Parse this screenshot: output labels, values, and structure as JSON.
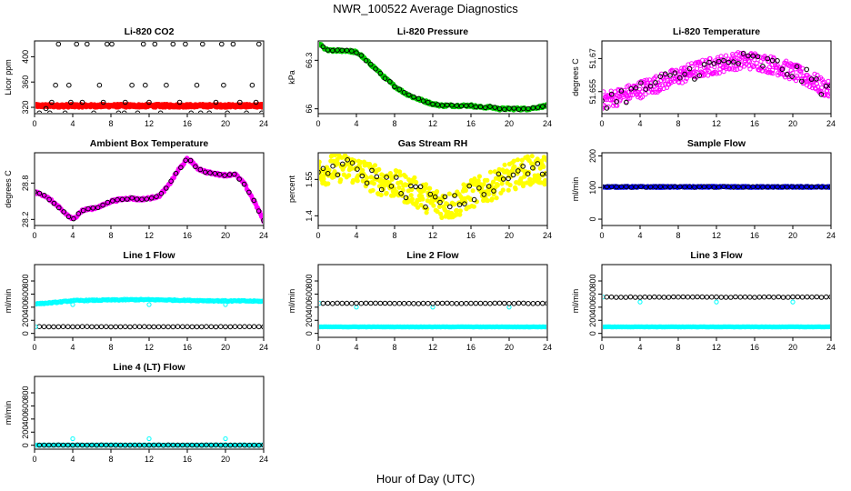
{
  "figure": {
    "title": "NWR_100522  Average Diagnostics",
    "xlabel": "Hour of Day (UTC)"
  },
  "colors": {
    "red": "#ff0000",
    "green": "#00cc00",
    "magenta": "#ff00ff",
    "yellow": "#ffff00",
    "blue": "#0000ff",
    "cyan": "#00ffff",
    "black": "#000000"
  },
  "chart_data": [
    {
      "type": "scatter",
      "title": "Li-820 CO2",
      "ylabel": "Licor ppm",
      "xlim": [
        0,
        24
      ],
      "xticks": [
        0,
        4,
        8,
        12,
        16,
        20,
        24
      ],
      "ylim": [
        310,
        425
      ],
      "yticks": [
        320,
        360,
        400
      ],
      "series": [
        {
          "color": "red",
          "filled": true,
          "kind": "band",
          "x": [
            0.1,
            24
          ],
          "y": [
            320,
            325
          ],
          "count": 600
        },
        {
          "color": "black",
          "filled": false,
          "kind": "points",
          "x": [
            0.5,
            1.2,
            1.8,
            2.2,
            2.5,
            3.2,
            3.8,
            4.4,
            5.0,
            5.5,
            6.2,
            6.8,
            7.2,
            7.6,
            8.1,
            8.8,
            9.5,
            10.2,
            10.8,
            11.4,
            12.0,
            12.6,
            13.2,
            13.8,
            14.5,
            15.2,
            15.8,
            16.4,
            17.0,
            17.6,
            18.3,
            19.0,
            19.6,
            20.2,
            20.8,
            21.5,
            22.2,
            22.8,
            23.5,
            23.8,
            3.6,
            11.6,
            19.8,
            1.6,
            9.4,
            17.4,
            23.2
          ],
          "y": [
            311,
            318,
            328,
            355,
            420,
            311,
            328,
            420,
            328,
            420,
            311,
            355,
            328,
            420,
            420,
            311,
            328,
            355,
            311,
            420,
            328,
            420,
            311,
            355,
            420,
            328,
            420,
            311,
            355,
            420,
            311,
            328,
            420,
            311,
            420,
            328,
            311,
            355,
            420,
            311,
            355,
            355,
            355,
            311,
            311,
            311,
            328
          ]
        }
      ]
    },
    {
      "type": "scatter",
      "title": "Li-820 Pressure",
      "ylabel": "kPa",
      "xlim": [
        0,
        24
      ],
      "xticks": [
        0,
        4,
        8,
        12,
        16,
        20,
        24
      ],
      "ylim": [
        65.97,
        66.42
      ],
      "yticks": [
        66.0,
        66.3
      ],
      "series": [
        {
          "color": "green",
          "filled": true,
          "kind": "curve",
          "x": [
            0,
            0.5,
            1,
            2,
            3,
            4,
            4.5,
            5,
            6,
            7,
            8,
            9,
            10,
            11,
            12,
            13,
            14,
            15,
            16,
            17,
            18,
            19,
            20,
            21,
            22,
            23,
            24
          ],
          "y": [
            66.41,
            66.38,
            66.36,
            66.36,
            66.36,
            66.35,
            66.33,
            66.3,
            66.25,
            66.19,
            66.14,
            66.1,
            66.07,
            66.05,
            66.03,
            66.02,
            66.02,
            66.02,
            66.02,
            66.01,
            66.01,
            66.0,
            66.0,
            66.0,
            66.0,
            66.01,
            66.02
          ],
          "jitter": 0.008,
          "count": 300
        },
        {
          "color": "black",
          "filled": false,
          "kind": "curve",
          "x": [
            0.5,
            1,
            2,
            3,
            4,
            4.5,
            5,
            6,
            7,
            8,
            9,
            10,
            11,
            12,
            13,
            14,
            15,
            16,
            17,
            18,
            19,
            20,
            21,
            22,
            23,
            24
          ],
          "y": [
            66.38,
            66.36,
            66.36,
            66.36,
            66.35,
            66.33,
            66.3,
            66.25,
            66.19,
            66.14,
            66.1,
            66.07,
            66.05,
            66.03,
            66.02,
            66.02,
            66.02,
            66.02,
            66.01,
            66.01,
            66.0,
            66.0,
            66.0,
            66.0,
            66.01,
            66.02
          ],
          "jitter": 0.004,
          "count": 48
        }
      ]
    },
    {
      "type": "scatter",
      "title": "Li-820 Temperature",
      "ylabel": "degrees C",
      "xlim": [
        0,
        24
      ],
      "xticks": [
        0,
        4,
        8,
        12,
        16,
        20,
        24
      ],
      "ylim": [
        51.645,
        51.678
      ],
      "yticks": [
        51.655,
        51.67
      ],
      "series": [
        {
          "color": "magenta",
          "filled": false,
          "kind": "curve",
          "x": [
            0,
            2,
            4,
            6,
            8,
            10,
            12,
            14,
            16,
            18,
            20,
            22,
            24
          ],
          "y": [
            51.651,
            51.653,
            51.656,
            51.659,
            51.662,
            51.665,
            51.667,
            51.669,
            51.669,
            51.667,
            51.664,
            51.66,
            51.655
          ],
          "jitter": 0.004,
          "count": 420
        },
        {
          "color": "black",
          "filled": false,
          "kind": "curve",
          "x": [
            0,
            2,
            4,
            6,
            8,
            10,
            12,
            14,
            16,
            18,
            20,
            22,
            24
          ],
          "y": [
            51.651,
            51.653,
            51.656,
            51.659,
            51.662,
            51.665,
            51.667,
            51.669,
            51.669,
            51.667,
            51.664,
            51.66,
            51.655
          ],
          "jitter": 0.004,
          "count": 48
        }
      ]
    },
    {
      "type": "scatter",
      "title": "Ambient Box Temperature",
      "ylabel": "degrees C",
      "xlim": [
        0,
        24
      ],
      "xticks": [
        0,
        4,
        8,
        12,
        16,
        20,
        24
      ],
      "ylim": [
        28.1,
        29.3
      ],
      "yticks": [
        28.2,
        28.8
      ],
      "series": [
        {
          "color": "magenta",
          "filled": true,
          "kind": "curve",
          "x": [
            0,
            1,
            2,
            3,
            4,
            5,
            6,
            7,
            8,
            9,
            10,
            11,
            12,
            13,
            14,
            15,
            16,
            16.5,
            17,
            18,
            19,
            20,
            21,
            22,
            23,
            24
          ],
          "y": [
            28.65,
            28.6,
            28.48,
            28.33,
            28.2,
            28.35,
            28.38,
            28.42,
            28.5,
            28.53,
            28.55,
            28.53,
            28.55,
            28.58,
            28.75,
            29.0,
            29.2,
            29.15,
            29.05,
            28.98,
            28.95,
            28.93,
            28.95,
            28.78,
            28.5,
            28.18
          ],
          "jitter": 0.02,
          "count": 300
        },
        {
          "color": "black",
          "filled": false,
          "kind": "curve",
          "x": [
            0,
            1,
            2,
            3,
            4,
            5,
            6,
            7,
            8,
            9,
            10,
            11,
            12,
            13,
            14,
            15,
            16,
            16.5,
            17,
            18,
            19,
            20,
            21,
            22,
            23,
            24
          ],
          "y": [
            28.65,
            28.6,
            28.48,
            28.33,
            28.2,
            28.35,
            28.38,
            28.42,
            28.5,
            28.53,
            28.55,
            28.53,
            28.55,
            28.58,
            28.75,
            29.0,
            29.2,
            29.15,
            29.05,
            28.98,
            28.95,
            28.93,
            28.95,
            28.78,
            28.5,
            28.18
          ],
          "jitter": 0.01,
          "count": 48
        }
      ]
    },
    {
      "type": "scatter",
      "title": "Gas Stream RH",
      "ylabel": "percent",
      "xlim": [
        0,
        24
      ],
      "xticks": [
        0,
        4,
        8,
        12,
        16,
        20,
        24
      ],
      "ylim": [
        1.36,
        1.66
      ],
      "yticks": [
        1.4,
        1.55
      ],
      "series": [
        {
          "color": "yellow",
          "filled": true,
          "kind": "curve",
          "x": [
            0,
            2,
            4,
            6,
            8,
            10,
            12,
            14,
            16,
            18,
            20,
            22,
            24
          ],
          "y": [
            1.58,
            1.6,
            1.59,
            1.55,
            1.53,
            1.5,
            1.46,
            1.44,
            1.49,
            1.52,
            1.56,
            1.59,
            1.58
          ],
          "jitter": 0.06,
          "count": 420
        },
        {
          "color": "black",
          "filled": false,
          "kind": "curve",
          "x": [
            0,
            2,
            4,
            6,
            8,
            10,
            12,
            14,
            16,
            18,
            20,
            22,
            24
          ],
          "y": [
            1.58,
            1.6,
            1.59,
            1.55,
            1.53,
            1.5,
            1.46,
            1.44,
            1.49,
            1.52,
            1.56,
            1.59,
            1.58
          ],
          "jitter": 0.04,
          "count": 48
        }
      ]
    },
    {
      "type": "scatter",
      "title": "Sample Flow",
      "ylabel": "ml/min",
      "xlim": [
        0,
        24
      ],
      "xticks": [
        0,
        4,
        8,
        12,
        16,
        20,
        24
      ],
      "ylim": [
        -20,
        210
      ],
      "yticks": [
        0,
        100,
        200
      ],
      "series": [
        {
          "color": "blue",
          "filled": true,
          "kind": "band",
          "x": [
            0,
            24
          ],
          "y": [
            100,
            104
          ],
          "count": 400
        },
        {
          "color": "black",
          "filled": false,
          "kind": "band",
          "x": [
            0,
            24
          ],
          "y": [
            101,
            103
          ],
          "count": 48
        }
      ]
    },
    {
      "type": "scatter",
      "title": "Line 1 Flow",
      "ylabel": "ml/min",
      "xlim": [
        0,
        24
      ],
      "xticks": [
        0,
        4,
        8,
        12,
        16,
        20,
        24
      ],
      "ylim": [
        -60,
        1050
      ],
      "yticks": [
        0,
        200,
        400,
        600,
        800
      ],
      "series": [
        {
          "color": "cyan",
          "filled": false,
          "kind": "curve",
          "x": [
            0,
            2,
            4,
            6,
            8,
            10,
            12,
            14,
            16,
            18,
            20,
            22,
            24
          ],
          "y": [
            450,
            470,
            500,
            505,
            510,
            515,
            515,
            510,
            505,
            500,
            495,
            495,
            490
          ],
          "jitter": 8,
          "count": 240
        },
        {
          "color": "cyan",
          "filled": false,
          "kind": "points",
          "x": [
            4,
            12,
            20
          ],
          "y": [
            440,
            440,
            440
          ]
        },
        {
          "color": "black",
          "filled": false,
          "kind": "band",
          "x": [
            0.5,
            24
          ],
          "y": [
            100,
            104
          ],
          "count": 48
        },
        {
          "color": "cyan",
          "filled": false,
          "kind": "points",
          "x": [
            0.1
          ],
          "y": [
            100
          ]
        }
      ]
    },
    {
      "type": "scatter",
      "title": "Line 2 Flow",
      "ylabel": "ml/min",
      "xlim": [
        0,
        24
      ],
      "xticks": [
        0,
        4,
        8,
        12,
        16,
        20,
        24
      ],
      "ylim": [
        -60,
        1050
      ],
      "yticks": [
        0,
        200,
        400,
        600,
        800
      ],
      "series": [
        {
          "color": "cyan",
          "filled": true,
          "kind": "band",
          "x": [
            0.1,
            24
          ],
          "y": [
            98,
            102
          ],
          "count": 240
        },
        {
          "color": "cyan",
          "filled": false,
          "kind": "points",
          "x": [
            0.1,
            4,
            12,
            20
          ],
          "y": [
            460,
            400,
            400,
            400
          ]
        },
        {
          "color": "black",
          "filled": false,
          "kind": "band",
          "x": [
            0.5,
            24
          ],
          "y": [
            455,
            462
          ],
          "count": 48
        }
      ]
    },
    {
      "type": "scatter",
      "title": "Line 3 Flow",
      "ylabel": "ml/min",
      "xlim": [
        0,
        24
      ],
      "xticks": [
        0,
        4,
        8,
        12,
        16,
        20,
        24
      ],
      "ylim": [
        -60,
        1050
      ],
      "yticks": [
        0,
        200,
        400,
        600,
        800
      ],
      "series": [
        {
          "color": "cyan",
          "filled": true,
          "kind": "band",
          "x": [
            0.1,
            24
          ],
          "y": [
            98,
            102
          ],
          "count": 240
        },
        {
          "color": "cyan",
          "filled": false,
          "kind": "points",
          "x": [
            0.1,
            4,
            12,
            20
          ],
          "y": [
            555,
            480,
            480,
            480
          ]
        },
        {
          "color": "black",
          "filled": false,
          "kind": "band",
          "x": [
            0.5,
            24
          ],
          "y": [
            550,
            558
          ],
          "count": 48
        }
      ]
    },
    {
      "type": "scatter",
      "title": "Line 4 (LT) Flow",
      "ylabel": "ml/min",
      "xlim": [
        0,
        24
      ],
      "xticks": [
        0,
        4,
        8,
        12,
        16,
        20,
        24
      ],
      "ylim": [
        -60,
        1050
      ],
      "yticks": [
        0,
        200,
        400,
        600,
        800
      ],
      "series": [
        {
          "color": "cyan",
          "filled": true,
          "kind": "band",
          "x": [
            0.1,
            24
          ],
          "y": [
            0,
            5
          ],
          "count": 240
        },
        {
          "color": "cyan",
          "filled": false,
          "kind": "points",
          "x": [
            4,
            12,
            20
          ],
          "y": [
            100,
            100,
            100
          ]
        },
        {
          "color": "black",
          "filled": false,
          "kind": "band",
          "x": [
            0.5,
            24
          ],
          "y": [
            0,
            4
          ],
          "count": 48
        }
      ]
    }
  ]
}
